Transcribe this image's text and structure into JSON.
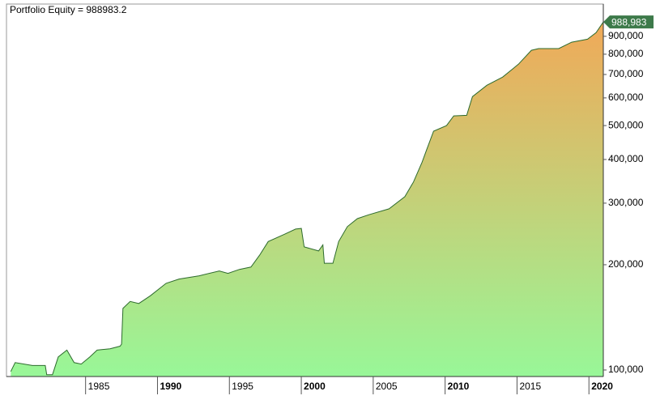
{
  "chart_data": {
    "type": "area",
    "title": "Portfolio Equity = 988983.2",
    "x": [
      1979.8,
      1980.1,
      1981.3,
      1982.2,
      1982.3,
      1982.7,
      1983.1,
      1983.7,
      1984.2,
      1984.7,
      1985.3,
      1985.8,
      1986.7,
      1987.4,
      1987.5,
      1987.6,
      1988.1,
      1988.7,
      1989.5,
      1990.6,
      1991.5,
      1992.9,
      1994.3,
      1994.9,
      1995.7,
      1996.5,
      1997.1,
      1997.7,
      1998.8,
      1999.6,
      2000.0,
      2000.2,
      2001.2,
      2001.5,
      2001.6,
      2002.2,
      2002.6,
      2003.2,
      2003.9,
      2004.7,
      2006.1,
      2007.2,
      2007.8,
      2008.4,
      2008.7,
      2009.2,
      2010.1,
      2010.6,
      2011.5,
      2011.9,
      2012.9,
      2014.0,
      2015.1,
      2016.0,
      2016.5,
      2017.9,
      2018.8,
      2019.9,
      2020.5,
      2021.0
    ],
    "series": [
      {
        "name": "Portfolio Equity",
        "values": [
          99000,
          105000,
          103000,
          103000,
          97000,
          97000,
          109000,
          114000,
          105000,
          104000,
          109000,
          114000,
          115000,
          117000,
          118600,
          150000,
          157000,
          155000,
          163000,
          177000,
          182000,
          186000,
          192000,
          189000,
          194000,
          197000,
          213000,
          233000,
          244000,
          253000,
          254000,
          225000,
          219000,
          228000,
          202000,
          202000,
          233000,
          257000,
          271000,
          278000,
          289000,
          313000,
          345000,
          393000,
          425000,
          482000,
          500000,
          533000,
          535000,
          605000,
          652000,
          688000,
          749000,
          821000,
          830000,
          830000,
          866000,
          883000,
          922000,
          988983.2
        ]
      }
    ],
    "last_value": 988983.2,
    "last_value_label": "988,983",
    "xlim": [
      1979.5,
      2021
    ],
    "xticks": [
      1985,
      1990,
      1995,
      2000,
      2005,
      2010,
      2015,
      2020
    ],
    "ylim": [
      95800,
      1113000
    ],
    "log_scale": true,
    "yticks": [
      {
        "value": 100000,
        "label": "100,000"
      },
      {
        "value": 200000,
        "label": "200,000"
      },
      {
        "value": 300000,
        "label": "300,000"
      },
      {
        "value": 400000,
        "label": "400,000"
      },
      {
        "value": 500000,
        "label": "500,000"
      },
      {
        "value": 600000,
        "label": "600,000"
      },
      {
        "value": 700000,
        "label": "700,000"
      },
      {
        "value": 800000,
        "label": "800,000"
      },
      {
        "value": 900000,
        "label": "900,000"
      }
    ],
    "line_color": "#2d6b2d",
    "fill_top_color": "#f5a555",
    "fill_bottom_color": "#98f798",
    "tag_color": "#3d7a4a"
  }
}
